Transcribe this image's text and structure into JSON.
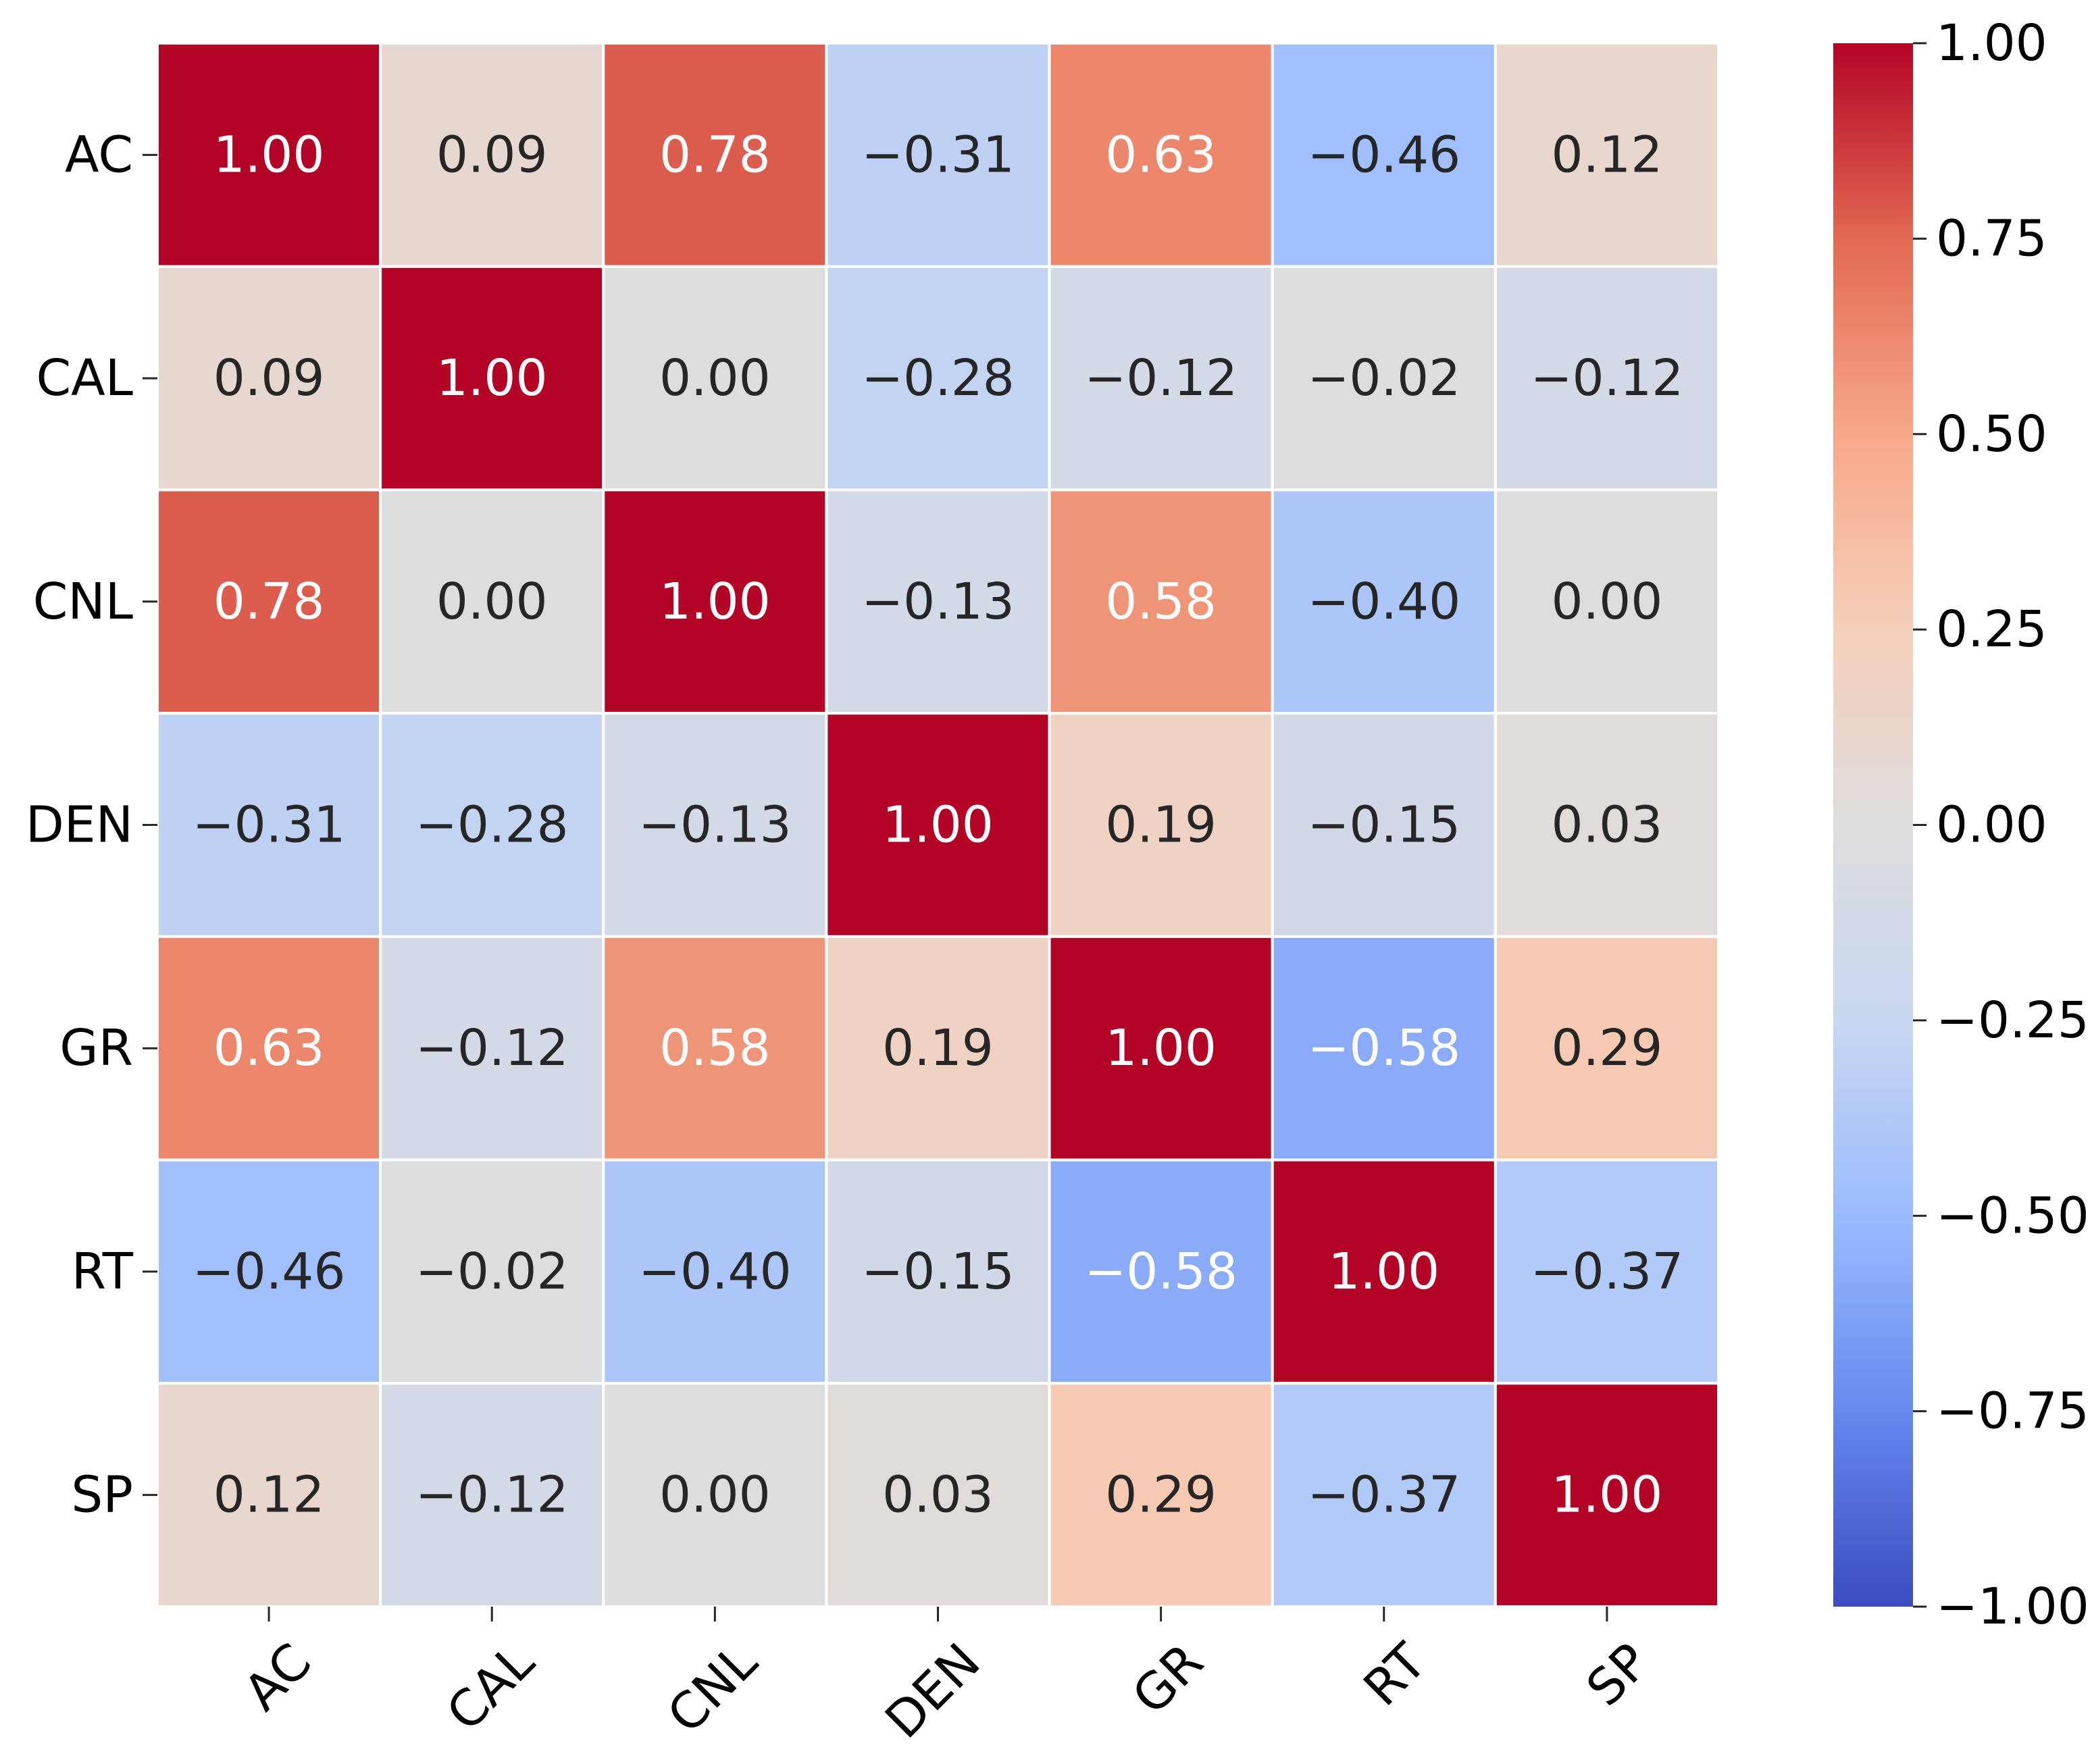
{
  "chart_data": {
    "type": "heatmap",
    "title": "",
    "xlabel": "",
    "ylabel": "",
    "row_labels": [
      "AC",
      "CAL",
      "CNL",
      "DEN",
      "GR",
      "RT",
      "SP"
    ],
    "col_labels": [
      "AC",
      "CAL",
      "CNL",
      "DEN",
      "GR",
      "RT",
      "SP"
    ],
    "values": [
      [
        1.0,
        0.09,
        0.78,
        -0.31,
        0.63,
        -0.46,
        0.12
      ],
      [
        0.09,
        1.0,
        0.0,
        -0.28,
        -0.12,
        -0.02,
        -0.12
      ],
      [
        0.78,
        0.0,
        1.0,
        -0.13,
        0.58,
        -0.4,
        0.0
      ],
      [
        -0.31,
        -0.28,
        -0.13,
        1.0,
        0.19,
        -0.15,
        0.03
      ],
      [
        0.63,
        -0.12,
        0.58,
        0.19,
        1.0,
        -0.58,
        0.29
      ],
      [
        -0.46,
        -0.02,
        -0.4,
        -0.15,
        -0.58,
        1.0,
        -0.37
      ],
      [
        0.12,
        -0.12,
        0.0,
        0.03,
        0.29,
        -0.37,
        1.0
      ]
    ],
    "cell_labels": [
      [
        "1.00",
        "0.09",
        "0.78",
        "−0.31",
        "0.63",
        "−0.46",
        "0.12"
      ],
      [
        "0.09",
        "1.00",
        "0.00",
        "−0.28",
        "−0.12",
        "−0.02",
        "−0.12"
      ],
      [
        "0.78",
        "0.00",
        "1.00",
        "−0.13",
        "0.58",
        "−0.40",
        "0.00"
      ],
      [
        "−0.31",
        "−0.28",
        "−0.13",
        "1.00",
        "0.19",
        "−0.15",
        "0.03"
      ],
      [
        "0.63",
        "−0.12",
        "0.58",
        "0.19",
        "1.00",
        "−0.58",
        "0.29"
      ],
      [
        "−0.46",
        "−0.02",
        "−0.40",
        "−0.15",
        "−0.58",
        "1.00",
        "−0.37"
      ],
      [
        "0.12",
        "−0.12",
        "0.00",
        "0.03",
        "0.29",
        "−0.37",
        "1.00"
      ]
    ],
    "vmin": -1.0,
    "vmax": 1.0,
    "colormap": "coolwarm",
    "colormap_stops": [
      "#3b4cc0",
      "#6788ee",
      "#9abbff",
      "#c9d7f0",
      "#dddddd",
      "#f6cfba",
      "#f7a889",
      "#e26952",
      "#b40426"
    ],
    "colorbar_ticks": [
      1.0,
      0.75,
      0.5,
      0.25,
      0.0,
      -0.25,
      -0.5,
      -0.75,
      -1.0
    ],
    "colorbar_tick_labels": [
      "1.00",
      "0.75",
      "0.50",
      "0.25",
      "0.00",
      "−0.25",
      "−0.50",
      "−0.75",
      "−1.00"
    ],
    "grid_line_color": "#ffffff",
    "text_color_dark": "#262626",
    "text_color_light": "#ffffff"
  }
}
